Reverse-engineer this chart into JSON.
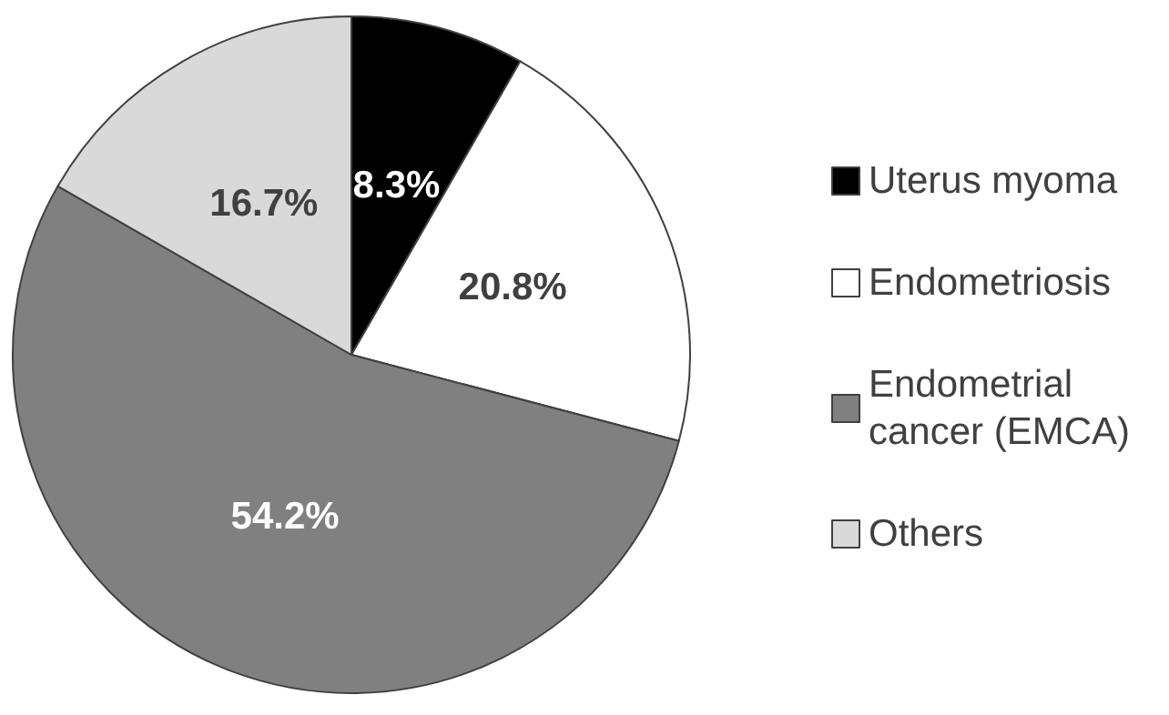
{
  "chart_data": {
    "type": "pie",
    "categories": [
      "Uterus myoma",
      "Endometriosis",
      "Endometrial cancer (EMCA)",
      "Others"
    ],
    "values": [
      8.3,
      20.8,
      54.2,
      16.7
    ],
    "colors": [
      "#000000",
      "#ffffff",
      "#808080",
      "#d9d9d9"
    ],
    "value_labels": [
      "8.3%",
      "20.8%",
      "54.2%",
      "16.7%"
    ],
    "legend": "right"
  }
}
